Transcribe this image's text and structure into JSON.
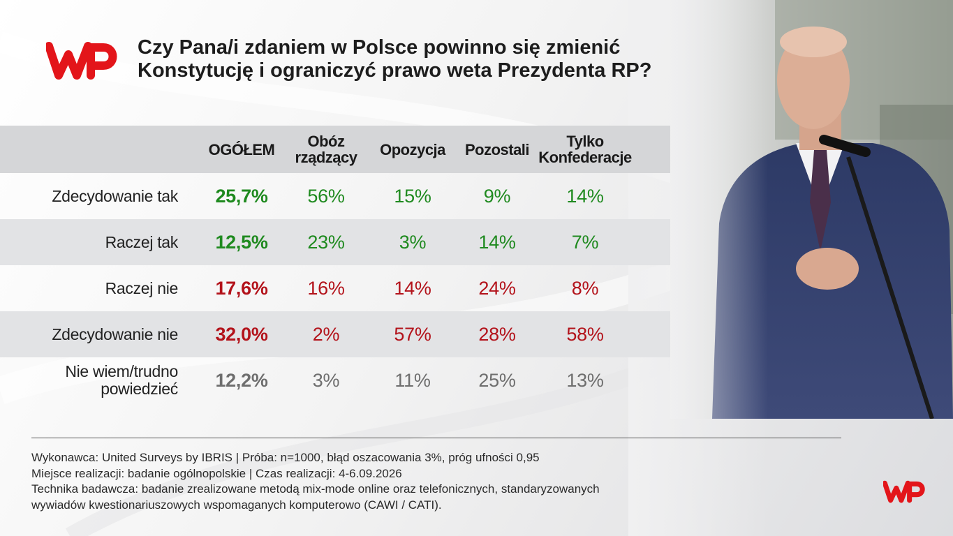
{
  "title_line1": "Czy Pana/i zdaniem w Polsce powinno się zmienić",
  "title_line2": "Konstytucję i ograniczyć prawo weta Prezydenta RP?",
  "colors": {
    "green": "#1f8a1f",
    "red": "#b3131b",
    "grey": "#6e6e6e",
    "brand": "#e3151a"
  },
  "chart_data": {
    "type": "table",
    "columns": [
      {
        "line1": "OGÓŁEM",
        "line2": ""
      },
      {
        "line1": "Obóz",
        "line2": "rządzący"
      },
      {
        "line1": "Opozycja",
        "line2": ""
      },
      {
        "line1": "Pozostali",
        "line2": ""
      },
      {
        "line1": "Tylko",
        "line2": "Konfederacje"
      }
    ],
    "rows": [
      {
        "label_line1": "Zdecydowanie tak",
        "label_line2": "",
        "tone": "green",
        "values": [
          "25,7%",
          "56%",
          "15%",
          "9%",
          "14%"
        ]
      },
      {
        "label_line1": "Raczej tak",
        "label_line2": "",
        "tone": "green",
        "values": [
          "12,5%",
          "23%",
          "3%",
          "14%",
          "7%"
        ]
      },
      {
        "label_line1": "Raczej nie",
        "label_line2": "",
        "tone": "red",
        "values": [
          "17,6%",
          "16%",
          "14%",
          "24%",
          "8%"
        ]
      },
      {
        "label_line1": "Zdecydowanie nie",
        "label_line2": "",
        "tone": "red",
        "values": [
          "32,0%",
          "2%",
          "57%",
          "28%",
          "58%"
        ]
      },
      {
        "label_line1": "Nie wiem/trudno",
        "label_line2": "powiedzieć",
        "tone": "grey",
        "values": [
          "12,2%",
          "3%",
          "11%",
          "25%",
          "13%"
        ]
      }
    ]
  },
  "footer": [
    "Wykonawca: United Surveys by IBRIS | Próba: n=1000, błąd oszacowania 3%, próg ufności 0,95",
    "Miejsce realizacji: badanie ogólnopolskie | Czas realizacji: 4-6.09.2026",
    "Technika badawcza: badanie zrealizowane metodą mix-mode online oraz telefonicznych, standaryzowanych",
    "wywiadów kwestionariuszowych wspomaganych komputerowo (CAWI / CATI)."
  ]
}
